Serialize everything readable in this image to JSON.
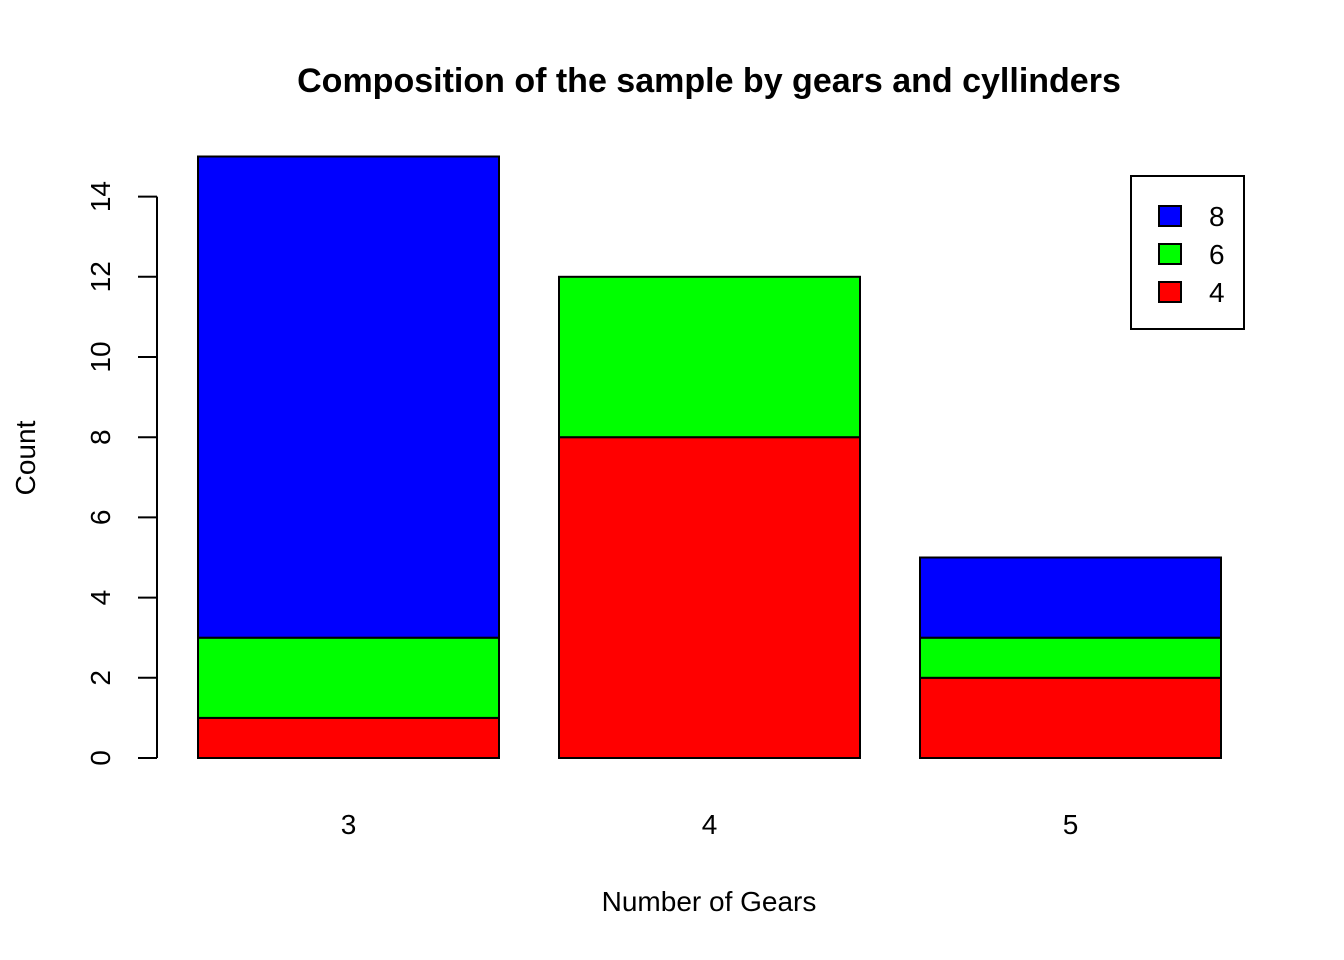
{
  "chart_data": {
    "type": "bar",
    "stacked": true,
    "title": "Composition of the sample by gears and cyllinders",
    "xlabel": "Number of Gears",
    "ylabel": "Count",
    "categories": [
      "3",
      "4",
      "5"
    ],
    "series": [
      {
        "name": "4",
        "color": "#ff0000",
        "values": [
          1,
          8,
          2
        ]
      },
      {
        "name": "6",
        "color": "#00ff00",
        "values": [
          2,
          4,
          1
        ]
      },
      {
        "name": "8",
        "color": "#0000ff",
        "values": [
          12,
          0,
          2
        ]
      }
    ],
    "yticks": [
      0,
      2,
      4,
      6,
      8,
      10,
      12,
      14
    ],
    "ylim": [
      0,
      15
    ],
    "legend": {
      "position": "top-right",
      "entries": [
        "8",
        "6",
        "4"
      ]
    },
    "grid": false
  }
}
